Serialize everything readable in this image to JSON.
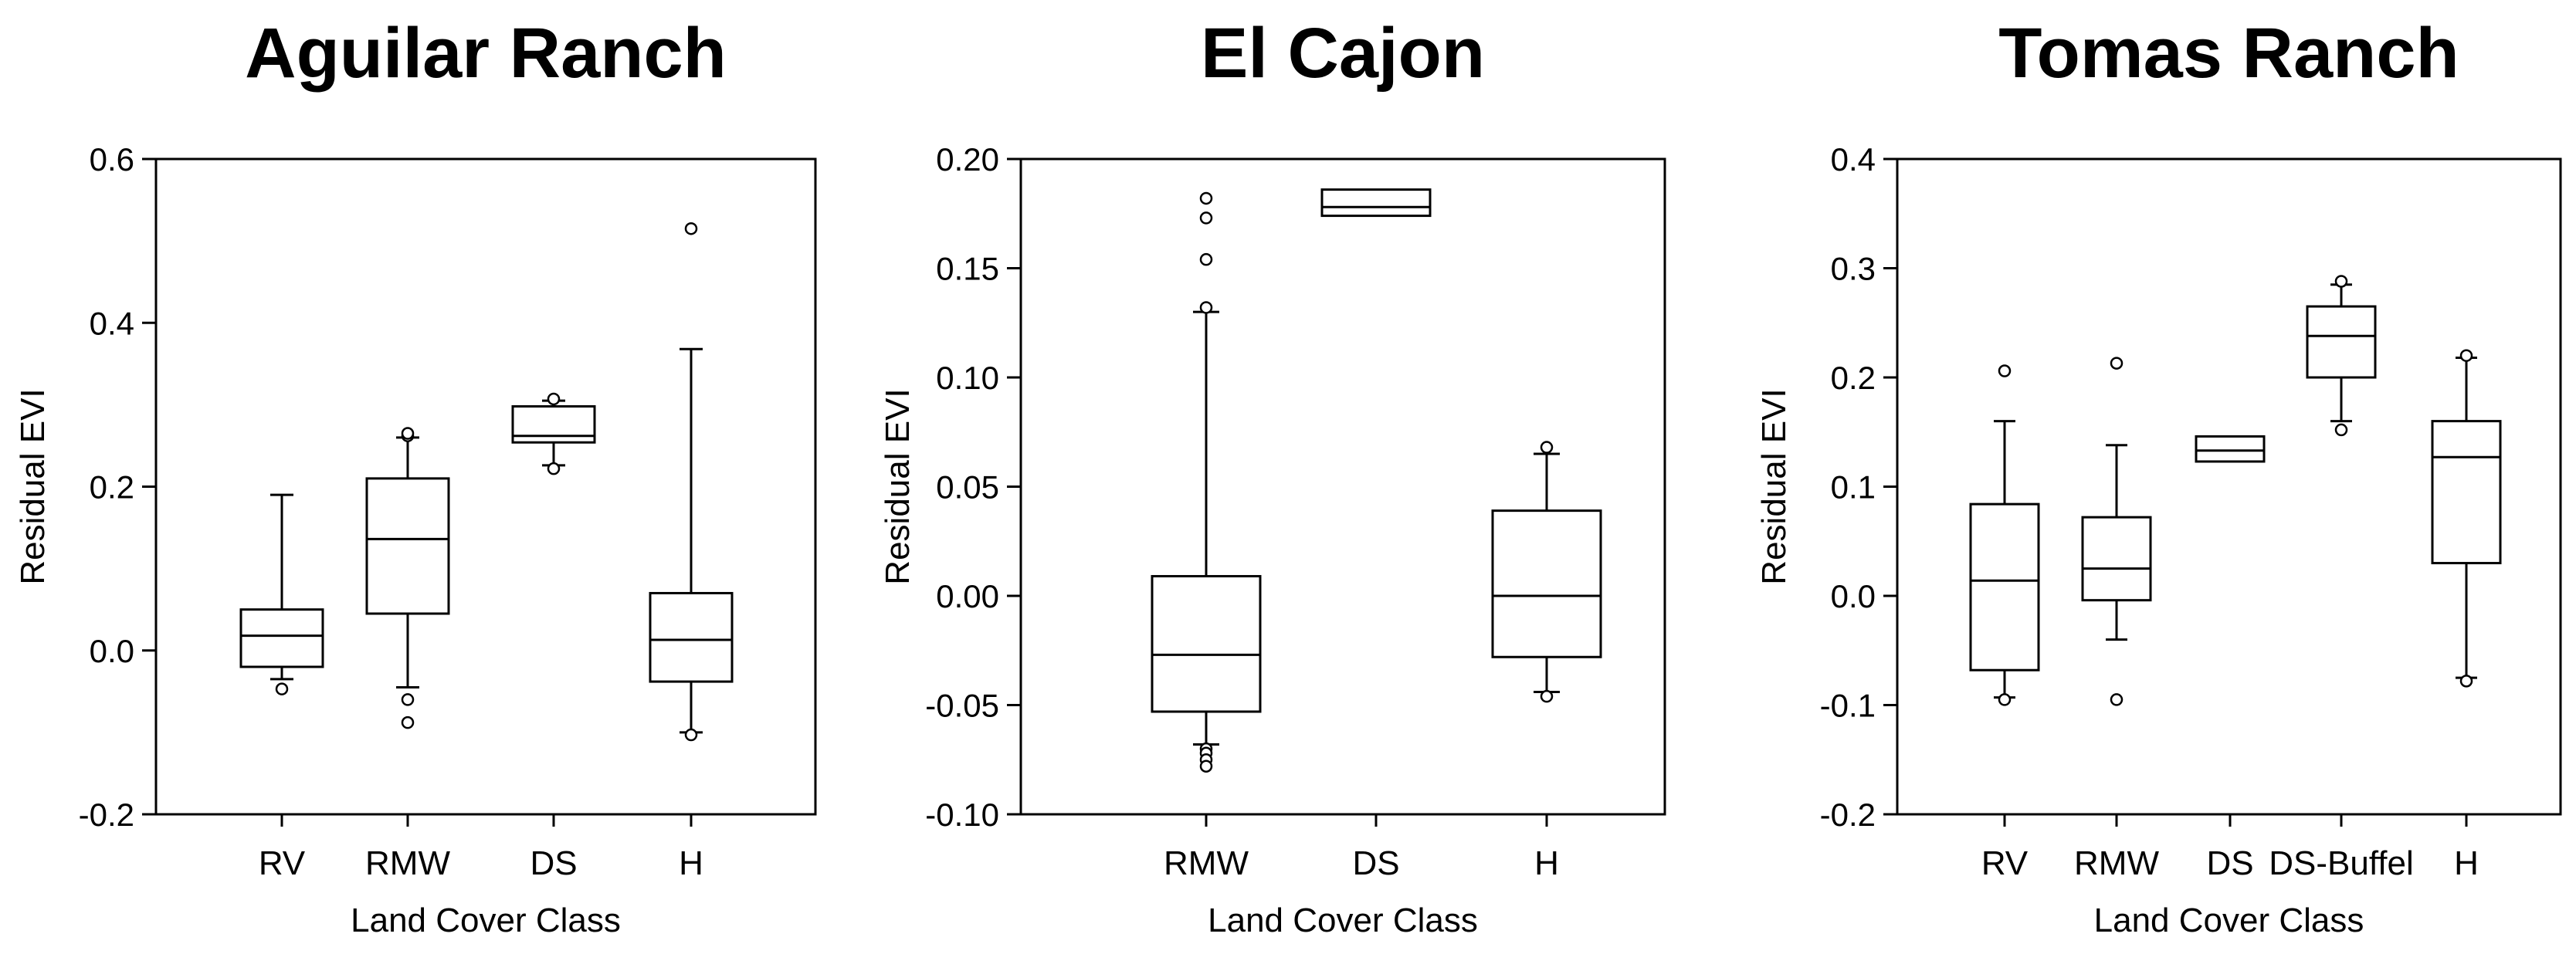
{
  "chart_data": [
    {
      "type": "box",
      "title": "Aguilar Ranch",
      "xlabel": "Land Cover Class",
      "ylabel": "Residual EVI",
      "ylim": [
        -0.2,
        0.6
      ],
      "yticks": [
        -0.2,
        0.0,
        0.2,
        0.4,
        0.6
      ],
      "ytick_labels": [
        "-0.2",
        "0.0",
        "0.2",
        "0.4",
        "0.6"
      ],
      "grid": false,
      "categories": [
        "RV",
        "RMW",
        "DS",
        "H"
      ],
      "boxes": [
        {
          "category": "RV",
          "whisker_low": -0.035,
          "q1": -0.02,
          "median": 0.018,
          "q3": 0.05,
          "whisker_high": 0.19,
          "outliers": [
            -0.047
          ]
        },
        {
          "category": "RMW",
          "whisker_low": -0.045,
          "q1": 0.045,
          "median": 0.136,
          "q3": 0.21,
          "whisker_high": 0.26,
          "outliers": [
            -0.06,
            -0.088,
            0.262,
            0.265
          ]
        },
        {
          "category": "DS",
          "whisker_low": 0.226,
          "q1": 0.254,
          "median": 0.262,
          "q3": 0.298,
          "whisker_high": 0.305,
          "outliers": [
            0.222,
            0.307
          ]
        },
        {
          "category": "H",
          "whisker_low": -0.1,
          "q1": -0.038,
          "median": 0.013,
          "q3": 0.07,
          "whisker_high": 0.368,
          "outliers": [
            -0.103,
            0.515
          ]
        }
      ]
    },
    {
      "type": "box",
      "title": "El Cajon",
      "xlabel": "Land Cover Class",
      "ylabel": "Residual EVI",
      "ylim": [
        -0.1,
        0.2
      ],
      "yticks": [
        -0.1,
        -0.05,
        0.0,
        0.05,
        0.1,
        0.15,
        0.2
      ],
      "ytick_labels": [
        "-0.10",
        "-0.05",
        "0.00",
        "0.05",
        "0.10",
        "0.15",
        "0.20"
      ],
      "grid": false,
      "categories": [
        "RMW",
        "DS",
        "H"
      ],
      "boxes": [
        {
          "category": "RMW",
          "whisker_low": -0.068,
          "q1": -0.053,
          "median": -0.027,
          "q3": 0.009,
          "whisker_high": 0.13,
          "outliers": [
            -0.07,
            -0.072,
            -0.075,
            -0.078,
            0.132,
            0.154,
            0.173,
            0.182
          ]
        },
        {
          "category": "DS",
          "whisker_low": 0.174,
          "q1": 0.174,
          "median": 0.178,
          "q3": 0.186,
          "whisker_high": 0.186,
          "outliers": []
        },
        {
          "category": "H",
          "whisker_low": -0.044,
          "q1": -0.028,
          "median": 0.0,
          "q3": 0.039,
          "whisker_high": 0.065,
          "outliers": [
            -0.046,
            0.068
          ]
        }
      ]
    },
    {
      "type": "box",
      "title": "Tomas Ranch",
      "xlabel": "Land Cover Class",
      "ylabel": "Residual EVI",
      "ylim": [
        -0.2,
        0.4
      ],
      "yticks": [
        -0.2,
        -0.1,
        0.0,
        0.1,
        0.2,
        0.3,
        0.4
      ],
      "ytick_labels": [
        "-0.2",
        "-0.1",
        "0.0",
        "0.1",
        "0.2",
        "0.3",
        "0.4"
      ],
      "grid": false,
      "categories": [
        "RV",
        "RMW",
        "DS",
        "DS-Buffel",
        "H"
      ],
      "boxes": [
        {
          "category": "RV",
          "whisker_low": -0.093,
          "q1": -0.068,
          "median": 0.014,
          "q3": 0.084,
          "whisker_high": 0.16,
          "outliers": [
            -0.095,
            0.206
          ]
        },
        {
          "category": "RMW",
          "whisker_low": -0.04,
          "q1": -0.004,
          "median": 0.025,
          "q3": 0.072,
          "whisker_high": 0.138,
          "outliers": [
            -0.095,
            0.213
          ]
        },
        {
          "category": "DS",
          "whisker_low": 0.123,
          "q1": 0.123,
          "median": 0.133,
          "q3": 0.146,
          "whisker_high": 0.146,
          "outliers": []
        },
        {
          "category": "DS-Buffel",
          "whisker_low": 0.16,
          "q1": 0.2,
          "median": 0.238,
          "q3": 0.265,
          "whisker_high": 0.285,
          "outliers": [
            0.152,
            0.288
          ]
        },
        {
          "category": "H",
          "whisker_low": -0.075,
          "q1": 0.03,
          "median": 0.127,
          "q3": 0.16,
          "whisker_high": 0.218,
          "outliers": [
            -0.078,
            0.22
          ]
        }
      ]
    }
  ]
}
